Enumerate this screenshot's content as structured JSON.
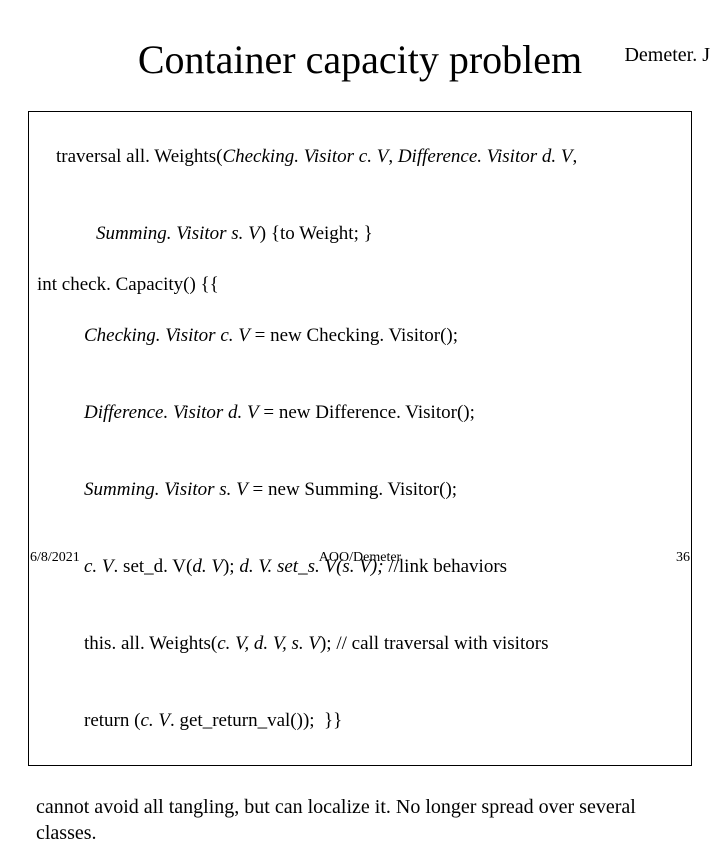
{
  "header_label": "Demeter. J",
  "title": "Container capacity problem",
  "code": {
    "l1a": "traversal all. Weights(",
    "l1b": "Checking. Visitor c. V",
    "l1c": ", ",
    "l1d": "Difference. Visitor d. V",
    "l1e": ",",
    "l2a": "Summing. Visitor s. V",
    "l2b": ") {to Weight; }",
    "l3": "int check. Capacity() {{",
    "l4a": "Checking. Visitor c. V",
    "l4b": " = new Checking. Visitor();",
    "l5a": "Difference. Visitor d. V",
    "l5b": " = new Difference. Visitor();",
    "l6a": "Summing. Visitor s. V",
    "l6b": " = new Summing. Visitor();",
    "l7a": "c. V",
    "l7b": ". set_d. V(",
    "l7c": "d. V",
    "l7d": "); ",
    "l7e": "d. V. set_s. V(s. V);",
    "l7f": " //link behaviors",
    "l8a": "this. all. Weights(",
    "l8b": "c. V, d. V, s. V",
    "l8c": "); // call traversal with visitors",
    "l9a": "return (",
    "l9b": "c. V",
    "l9c": ". get_return_val());  }}"
  },
  "note": "cannot avoid all tangling, but can localize it. No longer spread over several classes.",
  "footer_date": "6/8/2021",
  "footer_center": "AOO/Demeter",
  "footer_page": "36",
  "colors": {
    "bg": "#ffffff",
    "text": "#000000",
    "border": "#000000"
  }
}
